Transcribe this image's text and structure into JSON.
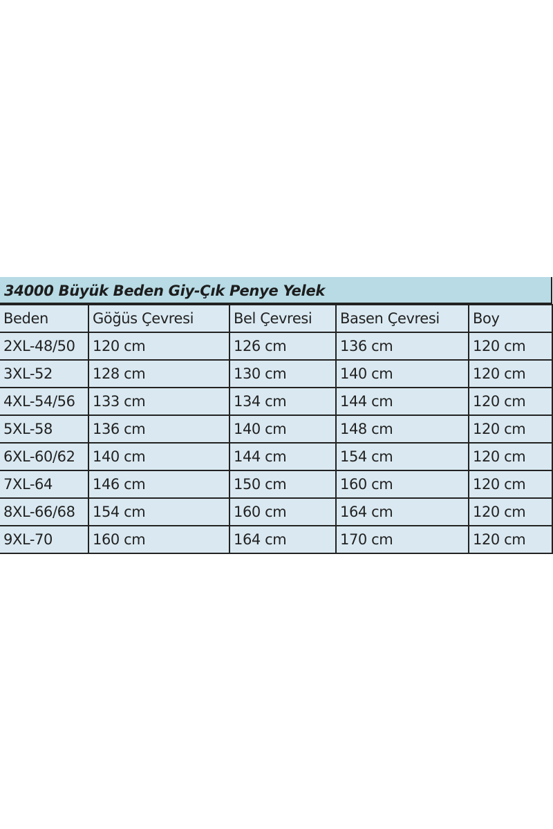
{
  "title": "34000 Büyük Beden Giy-Çık Penye Yelek",
  "colors": {
    "title_bg": "#b8dbe5",
    "cell_bg": "#dae9f1",
    "border": "#222222"
  },
  "columns": [
    "Beden",
    "Göğüs Çevresi",
    "Bel Çevresi",
    "Basen Çevresi",
    "Boy"
  ],
  "rows": [
    [
      "2XL-48/50",
      "120 cm",
      "126 cm",
      "136 cm",
      "120 cm"
    ],
    [
      "3XL-52",
      "128 cm",
      "130 cm",
      "140 cm",
      "120 cm"
    ],
    [
      "4XL-54/56",
      "133 cm",
      "134 cm",
      "144 cm",
      "120 cm"
    ],
    [
      "5XL-58",
      "136 cm",
      "140 cm",
      "148 cm",
      "120 cm"
    ],
    [
      "6XL-60/62",
      "140 cm",
      "144 cm",
      "154 cm",
      "120 cm"
    ],
    [
      "7XL-64",
      "146 cm",
      "150 cm",
      "160 cm",
      "120 cm"
    ],
    [
      "8XL-66/68",
      "154 cm",
      "160 cm",
      "164 cm",
      "120 cm"
    ],
    [
      "9XL-70",
      "160 cm",
      "164 cm",
      "170 cm",
      "120 cm"
    ]
  ]
}
